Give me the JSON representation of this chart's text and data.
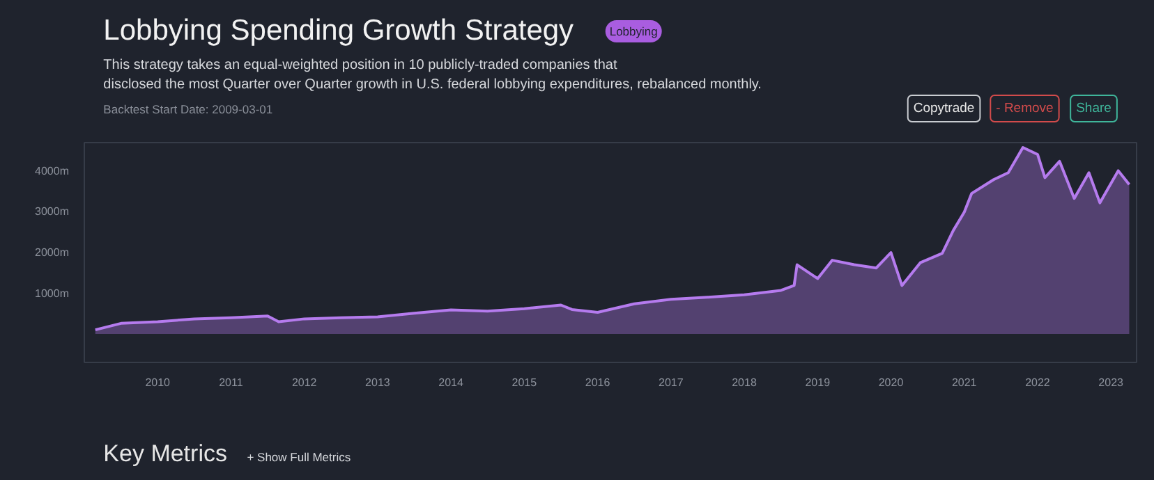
{
  "chart_data": {
    "type": "area",
    "title": "Lobbying Spending Growth Strategy",
    "subtitle": "This strategy takes an equal-weighted position in 10 publicly-traded companies that disclosed the most Quarter over Quarter growth in U.S. federal lobbying expenditures, rebalanced monthly.",
    "annotations": [
      "Lobbying",
      "Backtest Start Date: 2009-03-01",
      "Copytrade",
      "- Remove",
      "Share",
      "Key Metrics",
      "+ Show Full Metrics"
    ],
    "x": [
      2009.15,
      2009.5,
      2010.0,
      2010.5,
      2011.0,
      2011.5,
      2011.65,
      2012.0,
      2012.5,
      2013.0,
      2013.5,
      2014.0,
      2014.5,
      2015.0,
      2015.5,
      2015.65,
      2016.0,
      2016.5,
      2017.0,
      2017.5,
      2018.0,
      2018.5,
      2018.68,
      2018.72,
      2019.0,
      2019.2,
      2019.5,
      2019.8,
      2020.0,
      2020.15,
      2020.4,
      2020.7,
      2020.85,
      2021.0,
      2021.1,
      2021.4,
      2021.6,
      2021.8,
      2022.0,
      2022.1,
      2022.3,
      2022.5,
      2022.7,
      2022.85,
      2023.1,
      2023.25
    ],
    "series": [
      {
        "color": "#b57bee",
        "values": [
          100,
          260,
          300,
          370,
          400,
          440,
          300,
          370,
          400,
          420,
          510,
          590,
          560,
          620,
          710,
          600,
          530,
          740,
          850,
          900,
          960,
          1070,
          1190,
          1700,
          1360,
          1810,
          1700,
          1620,
          2000,
          1190,
          1750,
          1980,
          2540,
          2990,
          3450,
          3790,
          3960,
          4580,
          4410,
          3840,
          4240,
          3330,
          3960,
          3220,
          4010,
          3670
        ]
      }
    ],
    "xlim": [
      2009.0,
      2023.35
    ],
    "ylim": [
      -700,
      4700
    ],
    "xticks": [
      2010,
      2011,
      2012,
      2013,
      2014,
      2015,
      2016,
      2017,
      2018,
      2019,
      2020,
      2021,
      2022,
      2023
    ],
    "yticks": [
      {
        "value": 1000,
        "label": "1000m"
      },
      {
        "value": 2000,
        "label": "2000m"
      },
      {
        "value": 3000,
        "label": "3000m"
      },
      {
        "value": 4000,
        "label": "4000m"
      }
    ],
    "grid": false
  }
}
